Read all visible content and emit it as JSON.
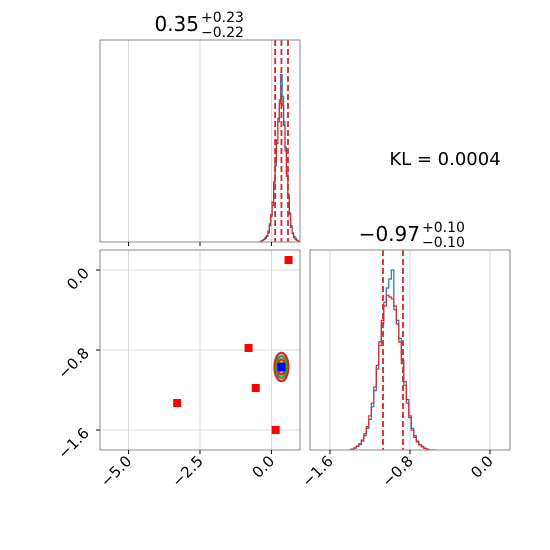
{
  "chart_data": [
    {
      "type": "histogram",
      "panel": "top-left marginal",
      "title_value": "0.35",
      "title_plus": "+0.23",
      "title_minus": "−0.22",
      "xlim": [
        -6.0,
        1.0
      ],
      "x_grid": [
        -5.0,
        -2.5,
        0.0
      ],
      "quantile_lines": [
        0.13,
        0.35,
        0.58
      ],
      "bin_centers": [
        -0.4,
        -0.35,
        -0.3,
        -0.25,
        -0.2,
        -0.15,
        -0.1,
        -0.05,
        0.0,
        0.05,
        0.1,
        0.15,
        0.2,
        0.25,
        0.3,
        0.35,
        0.4,
        0.45,
        0.5,
        0.55,
        0.6,
        0.65,
        0.7,
        0.75,
        0.8,
        0.85,
        0.9,
        0.95,
        1.0,
        1.05
      ],
      "series": [
        {
          "color": "#1f77b4",
          "values": [
            0,
            0.005,
            0.01,
            0.015,
            0.02,
            0.03,
            0.05,
            0.09,
            0.14,
            0.2,
            0.3,
            0.42,
            0.54,
            0.66,
            0.78,
            0.92,
            0.8,
            0.66,
            0.52,
            0.38,
            0.26,
            0.16,
            0.09,
            0.05,
            0.03,
            0.02,
            0.01,
            0.005,
            0,
            0
          ]
        },
        {
          "color": "#d62728",
          "values": [
            0,
            0.005,
            0.01,
            0.015,
            0.025,
            0.035,
            0.06,
            0.1,
            0.15,
            0.22,
            0.33,
            0.45,
            0.56,
            0.68,
            0.76,
            0.79,
            0.75,
            0.64,
            0.5,
            0.36,
            0.25,
            0.15,
            0.08,
            0.045,
            0.025,
            0.015,
            0.01,
            0.005,
            0,
            0
          ]
        }
      ]
    },
    {
      "type": "scatter",
      "panel": "bottom-left 2D",
      "xlim": [
        -6.0,
        1.0
      ],
      "ylim": [
        -1.8,
        0.2
      ],
      "x_ticks": [
        "−5.0",
        "−2.5",
        "0.0"
      ],
      "x_tick_values": [
        -5.0,
        -2.5,
        0.0
      ],
      "y_ticks": [
        "0.0",
        "−0.8",
        "−1.6"
      ],
      "y_tick_values": [
        0.0,
        -0.8,
        -1.6
      ],
      "density_center": [
        0.35,
        -0.97
      ],
      "density_sigma": [
        0.23,
        0.1
      ],
      "contour_colors": [
        "#d62728",
        "#2ca02c"
      ],
      "red_squares": [
        [
          -3.3,
          -1.33
        ],
        [
          -0.8,
          -0.78
        ],
        [
          -0.55,
          -1.18
        ],
        [
          0.15,
          -1.6
        ],
        [
          0.6,
          0.1
        ]
      ],
      "blue_square": [
        0.35,
        -0.97
      ],
      "marker_colors": {
        "red": "#ff0000",
        "blue": "#0000ff"
      }
    },
    {
      "type": "histogram",
      "panel": "bottom-right marginal",
      "title_value": "−0.97",
      "title_plus": "+0.10",
      "title_minus": "−0.10",
      "xlim": [
        -1.8,
        0.2
      ],
      "x_ticks": [
        "−1.6",
        "−0.8",
        "0.0"
      ],
      "x_tick_values": [
        -1.6,
        -0.8,
        0.0
      ],
      "quantile_lines": [
        -1.07,
        -0.87
      ],
      "bin_centers": [
        -1.4,
        -1.375,
        -1.35,
        -1.325,
        -1.3,
        -1.275,
        -1.25,
        -1.225,
        -1.2,
        -1.175,
        -1.15,
        -1.125,
        -1.1,
        -1.075,
        -1.05,
        -1.025,
        -1.0,
        -0.975,
        -0.95,
        -0.925,
        -0.9,
        -0.875,
        -0.85,
        -0.825,
        -0.8,
        -0.775,
        -0.75,
        -0.725,
        -0.7,
        -0.675,
        -0.65,
        -0.625,
        -0.6,
        -0.575,
        -0.55
      ],
      "series": [
        {
          "color": "#1f77b4",
          "values": [
            0,
            0.005,
            0.01,
            0.02,
            0.03,
            0.05,
            0.08,
            0.12,
            0.17,
            0.24,
            0.33,
            0.45,
            0.58,
            0.7,
            0.82,
            0.9,
            0.95,
            1.0,
            0.78,
            0.72,
            0.62,
            0.5,
            0.38,
            0.28,
            0.19,
            0.12,
            0.08,
            0.05,
            0.03,
            0.02,
            0.01,
            0.005,
            0,
            0,
            0
          ]
        },
        {
          "color": "#d62728",
          "values": [
            0,
            0.005,
            0.012,
            0.022,
            0.035,
            0.055,
            0.09,
            0.13,
            0.19,
            0.26,
            0.35,
            0.47,
            0.6,
            0.72,
            0.8,
            0.86,
            0.85,
            0.84,
            0.8,
            0.7,
            0.6,
            0.48,
            0.36,
            0.26,
            0.18,
            0.11,
            0.07,
            0.045,
            0.028,
            0.017,
            0.009,
            0.004,
            0,
            0,
            0
          ]
        }
      ]
    }
  ],
  "kl_text": "KL = 0.0004"
}
